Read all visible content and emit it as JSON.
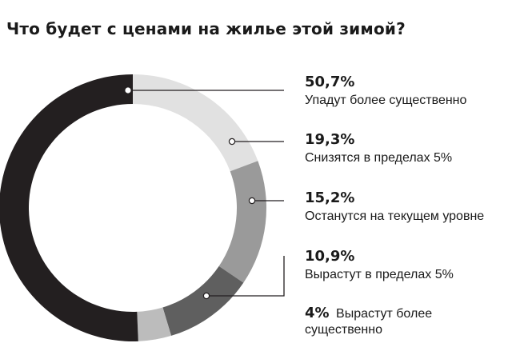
{
  "title": "Что будет с ценами на жилье этой зимой?",
  "chart_data": {
    "type": "pie",
    "style": "donut",
    "title": "Что будет с ценами на жилье этой зимой?",
    "unit": "%",
    "slices": [
      {
        "label": "Упадут более существенно",
        "value": 50.7,
        "display": "50,7%",
        "color": "#231f20"
      },
      {
        "label": "Снизятся в пределах 5%",
        "value": 19.3,
        "display": "19,3%",
        "color": "#e1e1e1"
      },
      {
        "label": "Останутся на текущем уровне",
        "value": 15.2,
        "display": "15,2%",
        "color": "#9a9a9a"
      },
      {
        "label": "Вырастут в пределах 5%",
        "value": 10.9,
        "display": "10,9%",
        "color": "#5f5f5f"
      },
      {
        "label": "Вырастут более существенно",
        "value": 4,
        "display": "4%",
        "color": "#bcbcbc"
      }
    ],
    "legend_placement": "right"
  }
}
